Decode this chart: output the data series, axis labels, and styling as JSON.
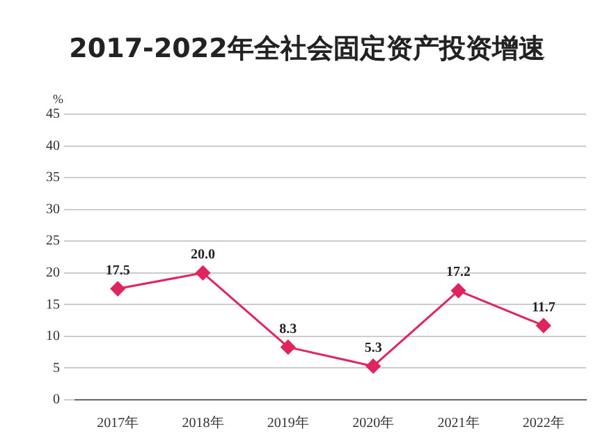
{
  "chart_data": {
    "type": "line",
    "title": "2017-2022年全社会固定资产投资增速",
    "ylabel": "%",
    "categories": [
      "2017年",
      "2018年",
      "2019年",
      "2020年",
      "2021年",
      "2022年"
    ],
    "series": [
      {
        "color": "#e0245e",
        "values": [
          17.5,
          20.0,
          8.3,
          5.3,
          17.2,
          11.7
        ],
        "value_labels": [
          "17.5",
          "20.0",
          "8.3",
          "5.3",
          "17.2",
          "11.7"
        ]
      }
    ],
    "ylim": [
      0,
      45
    ],
    "yticks": [
      0,
      5,
      10,
      15,
      20,
      25,
      30,
      35,
      40,
      45
    ],
    "grid": "y",
    "legend": false,
    "marker": "diamond"
  }
}
